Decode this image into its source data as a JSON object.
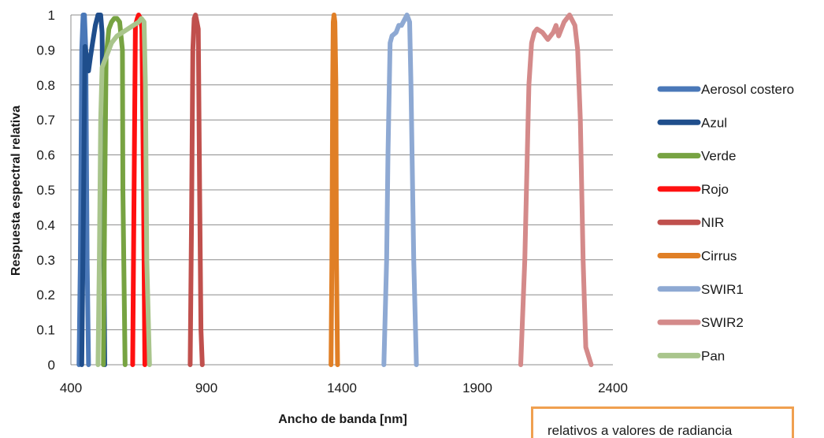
{
  "chart_data": {
    "type": "line",
    "xlabel": "Ancho de banda [nm]",
    "ylabel": "Respuesta espectral relativa",
    "xlim": [
      400,
      2400
    ],
    "ylim": [
      0,
      1
    ],
    "xticks": [
      "400",
      "900",
      "1400",
      "1900",
      "2400"
    ],
    "yticks": [
      "0",
      "0.1",
      "0.2",
      "0.3",
      "0.4",
      "0.5",
      "0.6",
      "0.7",
      "0.8",
      "0.9",
      "1"
    ],
    "grid": "horizontal",
    "legend": "right",
    "series": [
      {
        "name": "Aerosol costero",
        "color": "#4a78b8",
        "x": [
          430,
          435,
          440,
          445,
          450,
          455,
          460,
          465
        ],
        "y": [
          0,
          0.3,
          0.9,
          1.0,
          1.0,
          0.9,
          0.3,
          0
        ]
      },
      {
        "name": "Azul",
        "color": "#1f4e8c",
        "x": [
          440,
          447,
          452,
          458,
          465,
          472,
          480,
          490,
          500,
          510,
          515,
          520,
          525
        ],
        "y": [
          0,
          0.5,
          0.91,
          0.88,
          0.84,
          0.88,
          0.92,
          0.97,
          1.0,
          1.0,
          0.95,
          0.5,
          0
        ]
      },
      {
        "name": "Verde",
        "color": "#77a342",
        "x": [
          520,
          525,
          530,
          540,
          550,
          560,
          570,
          580,
          590,
          592,
          600
        ],
        "y": [
          0,
          0.5,
          0.88,
          0.96,
          0.98,
          0.99,
          0.99,
          0.98,
          0.9,
          0.5,
          0
        ]
      },
      {
        "name": "Rojo",
        "color": "#ff1010",
        "x": [
          628,
          633,
          638,
          645,
          650,
          657,
          662,
          668,
          673
        ],
        "y": [
          0,
          0.5,
          0.97,
          0.99,
          1.0,
          0.99,
          0.96,
          0.5,
          0
        ]
      },
      {
        "name": "NIR",
        "color": "#c0504d",
        "x": [
          840,
          845,
          850,
          855,
          860,
          865,
          870,
          875,
          880,
          885
        ],
        "y": [
          0,
          0.4,
          0.9,
          0.99,
          1.0,
          0.98,
          0.96,
          0.5,
          0.1,
          0
        ]
      },
      {
        "name": "Cirrus",
        "color": "#e07f26",
        "x": [
          1360,
          1363,
          1366,
          1368,
          1371,
          1374,
          1378,
          1380,
          1384
        ],
        "y": [
          0,
          0.3,
          0.8,
          0.98,
          1.0,
          0.98,
          0.8,
          0.3,
          0
        ]
      },
      {
        "name": "SWIR1",
        "color": "#8ea9d3",
        "x": [
          1555,
          1565,
          1570,
          1578,
          1585,
          1600,
          1610,
          1620,
          1640,
          1650,
          1655,
          1665,
          1675
        ],
        "y": [
          0,
          0.3,
          0.6,
          0.92,
          0.94,
          0.95,
          0.97,
          0.97,
          1.0,
          0.98,
          0.8,
          0.3,
          0
        ]
      },
      {
        "name": "SWIR2",
        "color": "#d48a8a",
        "x": [
          2060,
          2075,
          2090,
          2100,
          2110,
          2120,
          2140,
          2160,
          2180,
          2190,
          2200,
          2210,
          2220,
          2240,
          2260,
          2270,
          2280,
          2290,
          2300,
          2320
        ],
        "y": [
          0,
          0.3,
          0.8,
          0.92,
          0.95,
          0.96,
          0.95,
          0.93,
          0.95,
          0.97,
          0.94,
          0.96,
          0.98,
          1.0,
          0.97,
          0.9,
          0.7,
          0.3,
          0.05,
          0
        ]
      },
      {
        "name": "Pan",
        "color": "#a9c58c",
        "x": [
          500,
          505,
          510,
          515,
          520,
          530,
          540,
          550,
          570,
          590,
          610,
          630,
          650,
          660,
          670,
          675,
          680,
          690
        ],
        "y": [
          0,
          0.3,
          0.7,
          0.85,
          0.86,
          0.88,
          0.9,
          0.92,
          0.94,
          0.95,
          0.96,
          0.97,
          0.98,
          0.99,
          0.98,
          0.8,
          0.3,
          0
        ]
      }
    ]
  },
  "note": {
    "text": "relativos a valores de radiancia"
  }
}
